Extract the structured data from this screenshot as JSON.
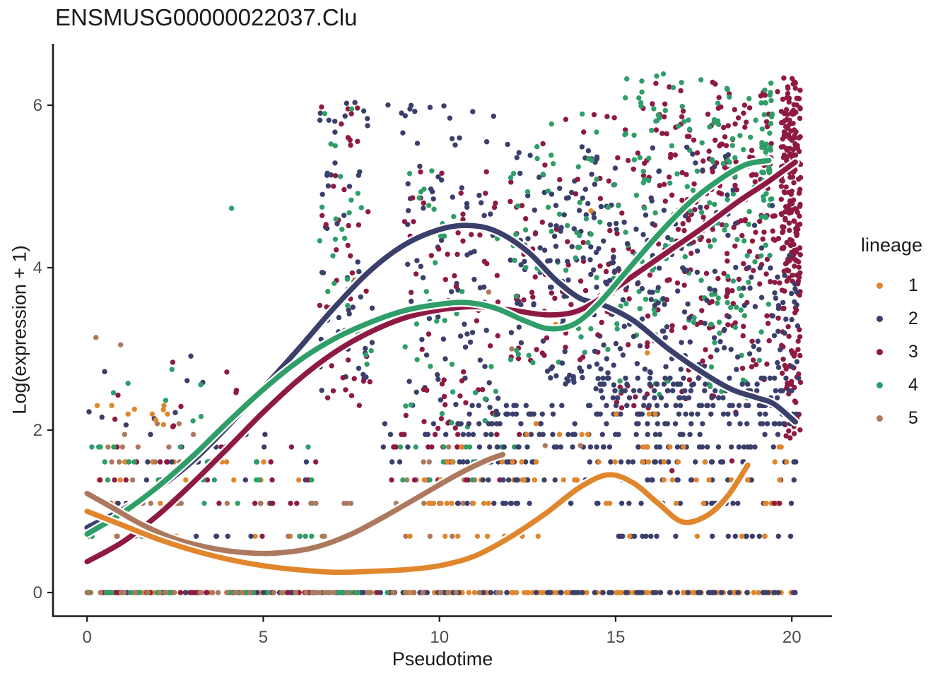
{
  "chart_data": {
    "type": "scatter",
    "title": "ENSMUSG00000022037.Clu",
    "xlabel": "Pseudotime",
    "ylabel": "Log(expression + 1)",
    "xlim": [
      -1.0,
      21.4
    ],
    "ylim": [
      -0.3,
      6.85
    ],
    "x_ticks": [
      0,
      5,
      10,
      15,
      20
    ],
    "y_ticks": [
      0,
      2,
      4,
      6
    ],
    "grid": false,
    "axis_color": "#1A1A1A",
    "tick_label_color": "#4D4D4D",
    "legend": {
      "title": "lineage",
      "position": "right",
      "entries": [
        {
          "label": "1",
          "color": "#E0862C"
        },
        {
          "label": "2",
          "color": "#3A3F6B"
        },
        {
          "label": "3",
          "color": "#8E1A43"
        },
        {
          "label": "4",
          "color": "#2F9E68"
        },
        {
          "label": "5",
          "color": "#AC795F"
        }
      ]
    },
    "colors": {
      "1": "#E0862C",
      "2": "#3A3F6B",
      "3": "#8E1A43",
      "4": "#2F9E68",
      "5": "#AC795F"
    },
    "smoothers": [
      {
        "lineage": "2",
        "points": [
          [
            0,
            0.8
          ],
          [
            1,
            1.02
          ],
          [
            2,
            1.28
          ],
          [
            3,
            1.62
          ],
          [
            4,
            2.05
          ],
          [
            5,
            2.52
          ],
          [
            6,
            3.0
          ],
          [
            7,
            3.5
          ],
          [
            8,
            3.95
          ],
          [
            9,
            4.28
          ],
          [
            10,
            4.47
          ],
          [
            10.8,
            4.52
          ],
          [
            11.6,
            4.45
          ],
          [
            12.5,
            4.2
          ],
          [
            13.3,
            3.85
          ],
          [
            14,
            3.62
          ],
          [
            14.6,
            3.55
          ],
          [
            15.5,
            3.35
          ],
          [
            16.5,
            3.0
          ],
          [
            17.5,
            2.7
          ],
          [
            18.3,
            2.5
          ],
          [
            19,
            2.4
          ],
          [
            19.5,
            2.32
          ],
          [
            20.1,
            2.1
          ]
        ]
      },
      {
        "lineage": "3",
        "points": [
          [
            0,
            0.38
          ],
          [
            1,
            0.62
          ],
          [
            2,
            0.95
          ],
          [
            3,
            1.35
          ],
          [
            4,
            1.78
          ],
          [
            5,
            2.22
          ],
          [
            6,
            2.62
          ],
          [
            7,
            2.95
          ],
          [
            8,
            3.2
          ],
          [
            9,
            3.38
          ],
          [
            10,
            3.48
          ],
          [
            11,
            3.52
          ],
          [
            12,
            3.48
          ],
          [
            13,
            3.42
          ],
          [
            13.8,
            3.45
          ],
          [
            14.5,
            3.6
          ],
          [
            15.5,
            3.9
          ],
          [
            16.5,
            4.2
          ],
          [
            17.5,
            4.5
          ],
          [
            18.5,
            4.82
          ],
          [
            19.3,
            5.05
          ],
          [
            20.1,
            5.3
          ]
        ]
      },
      {
        "lineage": "4",
        "points": [
          [
            0,
            0.72
          ],
          [
            1,
            0.98
          ],
          [
            2,
            1.3
          ],
          [
            3,
            1.68
          ],
          [
            4,
            2.1
          ],
          [
            5,
            2.5
          ],
          [
            6,
            2.85
          ],
          [
            7,
            3.12
          ],
          [
            8,
            3.32
          ],
          [
            9,
            3.47
          ],
          [
            10,
            3.55
          ],
          [
            10.8,
            3.57
          ],
          [
            11.6,
            3.5
          ],
          [
            12.4,
            3.35
          ],
          [
            13.1,
            3.25
          ],
          [
            13.8,
            3.3
          ],
          [
            14.5,
            3.55
          ],
          [
            15.3,
            3.95
          ],
          [
            16.2,
            4.4
          ],
          [
            17.1,
            4.8
          ],
          [
            18,
            5.1
          ],
          [
            18.7,
            5.27
          ],
          [
            19.35,
            5.32
          ]
        ]
      },
      {
        "lineage": "5",
        "points": [
          [
            0,
            1.22
          ],
          [
            0.7,
            1.05
          ],
          [
            1.5,
            0.85
          ],
          [
            2.5,
            0.66
          ],
          [
            3.5,
            0.55
          ],
          [
            4.5,
            0.49
          ],
          [
            5.5,
            0.49
          ],
          [
            6.5,
            0.56
          ],
          [
            7.5,
            0.72
          ],
          [
            8.5,
            0.95
          ],
          [
            9.5,
            1.2
          ],
          [
            10.5,
            1.45
          ],
          [
            11.3,
            1.62
          ],
          [
            11.8,
            1.7
          ]
        ]
      },
      {
        "lineage": "1",
        "points": [
          [
            0,
            1.0
          ],
          [
            1,
            0.83
          ],
          [
            2,
            0.66
          ],
          [
            3,
            0.52
          ],
          [
            4,
            0.41
          ],
          [
            5,
            0.33
          ],
          [
            6,
            0.28
          ],
          [
            7,
            0.25
          ],
          [
            8,
            0.26
          ],
          [
            9,
            0.28
          ],
          [
            10,
            0.33
          ],
          [
            11,
            0.45
          ],
          [
            12,
            0.68
          ],
          [
            13,
            0.97
          ],
          [
            14,
            1.3
          ],
          [
            14.8,
            1.45
          ],
          [
            15.5,
            1.35
          ],
          [
            16.2,
            1.1
          ],
          [
            16.9,
            0.87
          ],
          [
            17.6,
            0.95
          ],
          [
            18.2,
            1.2
          ],
          [
            18.75,
            1.57
          ]
        ]
      }
    ],
    "scatter": {
      "seed": 7,
      "point_radius": 3.7,
      "quantized_rows": [
        0,
        0.693,
        1.099,
        1.386,
        1.609,
        1.792,
        1.946,
        2.079,
        2.197,
        2.303,
        2.398,
        2.485,
        2.565,
        2.64
      ],
      "clusters": [
        {
          "lineage": "1",
          "t": [
            0,
            9.5
          ],
          "values": [
            0
          ],
          "n": 70
        },
        {
          "lineage": "1",
          "t": [
            9.5,
            20.2
          ],
          "values": [
            0
          ],
          "n": 110
        },
        {
          "lineage": "2",
          "t": [
            0,
            9.5
          ],
          "values": [
            0
          ],
          "n": 40
        },
        {
          "lineage": "2",
          "t": [
            9.5,
            20.2
          ],
          "values": [
            0
          ],
          "n": 60
        },
        {
          "lineage": "3",
          "t": [
            0,
            9.2
          ],
          "values": [
            0
          ],
          "n": 45
        },
        {
          "lineage": "4",
          "t": [
            0,
            9.2
          ],
          "values": [
            0
          ],
          "n": 35
        },
        {
          "lineage": "5",
          "t": [
            0,
            11.8
          ],
          "values": [
            0
          ],
          "n": 45
        },
        {
          "lineage": "1",
          "t": [
            0,
            6.5
          ],
          "values": [
            0.693,
            1.099,
            1.386,
            1.609
          ],
          "n": 22
        },
        {
          "lineage": "1",
          "t": [
            0,
            2.5
          ],
          "values": [
            1.946,
            2.197,
            2.303
          ],
          "n": 6
        },
        {
          "lineage": "2",
          "t": [
            0,
            6.5
          ],
          "values": [
            0.693,
            1.099,
            1.386,
            1.609,
            1.792,
            1.946
          ],
          "n": 30
        },
        {
          "lineage": "3",
          "t": [
            0,
            6.5
          ],
          "values": [
            0.693,
            1.099,
            1.386,
            1.609,
            1.792
          ],
          "n": 30
        },
        {
          "lineage": "4",
          "t": [
            0,
            6.5
          ],
          "values": [
            0.693,
            1.099,
            1.386,
            1.609,
            1.792
          ],
          "n": 30
        },
        {
          "lineage": "5",
          "t": [
            0,
            3
          ],
          "values": [
            0.693,
            1.099,
            1.386,
            1.609,
            1.792
          ],
          "n": 22
        },
        {
          "lineage": "5",
          "t": [
            3,
            9
          ],
          "values": [
            0.693,
            1.099
          ],
          "n": 12
        },
        {
          "lineage": "5",
          "t": [
            9,
            12
          ],
          "values": [
            0.693,
            1.099,
            1.386,
            1.609,
            1.792
          ],
          "n": 16
        },
        {
          "lineage": "5",
          "t": [
            0,
            5
          ],
          "values": [
            1.946,
            2.079
          ],
          "n": 4
        },
        {
          "lineage": "2",
          "t": [
            0,
            4
          ],
          "vrange": [
            2.0,
            3.0
          ],
          "n": 9
        },
        {
          "lineage": "3",
          "t": [
            0,
            5.5
          ],
          "vrange": [
            2.0,
            3.1
          ],
          "n": 9
        },
        {
          "lineage": "4",
          "t": [
            0,
            4.5
          ],
          "vrange": [
            2.0,
            2.8
          ],
          "n": 7
        },
        {
          "lineage": "1",
          "t": [
            0,
            3
          ],
          "vrange": [
            2.0,
            2.4
          ],
          "n": 4
        },
        {
          "lineage": "2",
          "t": [
            6.6,
            8.1
          ],
          "vrange": [
            2.3,
            6.1
          ],
          "n": 55
        },
        {
          "lineage": "3",
          "t": [
            6.6,
            8.1
          ],
          "vrange": [
            2.3,
            6.0
          ],
          "n": 45
        },
        {
          "lineage": "4",
          "t": [
            6.6,
            8.1
          ],
          "vrange": [
            2.3,
            6.1
          ],
          "n": 28
        },
        {
          "lineage": "2",
          "t": [
            9,
            11.7
          ],
          "vrange": [
            2.2,
            6.0
          ],
          "n": 80
        },
        {
          "lineage": "3",
          "t": [
            9,
            11.7
          ],
          "vrange": [
            2.0,
            5.2
          ],
          "n": 60
        },
        {
          "lineage": "4",
          "t": [
            9,
            11.7
          ],
          "vrange": [
            2.0,
            5.2
          ],
          "n": 40
        },
        {
          "lineage": "2",
          "t": [
            8.4,
            12.6
          ],
          "values": [
            1.609,
            1.792,
            1.946,
            2.079
          ],
          "n": 22
        },
        {
          "lineage": "3",
          "t": [
            8.4,
            12.6
          ],
          "values": [
            1.386,
            1.609,
            1.792,
            1.946
          ],
          "n": 25
        },
        {
          "lineage": "4",
          "t": [
            8.4,
            12.6
          ],
          "values": [
            1.386,
            1.609,
            1.792
          ],
          "n": 16
        },
        {
          "lineage": "1",
          "t": [
            8.8,
            12.6
          ],
          "values": [
            0.693,
            1.099,
            1.386
          ],
          "n": 20
        },
        {
          "lineage": "2",
          "t": [
            12,
            15
          ],
          "vrange": [
            2.5,
            5.5
          ],
          "n": 90
        },
        {
          "lineage": "3",
          "t": [
            12,
            15
          ],
          "vrange": [
            2.8,
            5.2
          ],
          "n": 65
        },
        {
          "lineage": "4",
          "t": [
            12,
            15
          ],
          "vrange": [
            2.8,
            5.5
          ],
          "n": 50
        },
        {
          "lineage": "3",
          "t": [
            15,
            19.7
          ],
          "vrange": [
            3.2,
            6.3
          ],
          "n": 230,
          "skew": 0.75
        },
        {
          "lineage": "4",
          "t": [
            15,
            19.45
          ],
          "vrange": [
            3.2,
            6.4
          ],
          "n": 165,
          "skew": 0.8
        },
        {
          "lineage": "3",
          "t": [
            19.7,
            20.25
          ],
          "vrange": [
            3.8,
            6.35
          ],
          "n": 190
        },
        {
          "lineage": "3",
          "t": [
            19.7,
            20.25
          ],
          "vrange": [
            1.9,
            3.8
          ],
          "n": 55
        },
        {
          "lineage": "4",
          "t": [
            19.15,
            19.45
          ],
          "vrange": [
            4.6,
            6.45
          ],
          "n": 32
        },
        {
          "lineage": "3",
          "t": [
            15,
            19.5
          ],
          "vrange": [
            2.2,
            3.2
          ],
          "n": 35
        },
        {
          "lineage": "4",
          "t": [
            15,
            19.5
          ],
          "vrange": [
            2.3,
            3.2
          ],
          "n": 18
        },
        {
          "lineage": "2",
          "t": [
            13,
            17.2
          ],
          "vrange": [
            2.5,
            4.9
          ],
          "n": 120
        },
        {
          "lineage": "2",
          "t": [
            14.5,
            20.2
          ],
          "values": [
            1.609,
            1.792,
            1.946,
            2.079,
            2.197,
            2.303,
            2.398,
            2.485,
            2.565,
            2.64
          ],
          "n": 210
        },
        {
          "lineage": "2",
          "t": [
            10.5,
            14.5
          ],
          "values": [
            1.099,
            1.386,
            1.609,
            1.792,
            1.946,
            2.079,
            2.197,
            2.303
          ],
          "n": 110
        },
        {
          "lineage": "2",
          "t": [
            15,
            20.2
          ],
          "values": [
            0.693,
            1.099,
            1.386
          ],
          "n": 55
        },
        {
          "lineage": "2",
          "t": [
            17,
            20.2
          ],
          "vrange": [
            2.7,
            4.2
          ],
          "n": 60,
          "skew": 0.8
        },
        {
          "lineage": "1",
          "t": [
            10,
            20
          ],
          "values": [
            0.693,
            1.099,
            1.386,
            1.609,
            1.792
          ],
          "n": 65
        },
        {
          "lineage": "1",
          "t": [
            12,
            16.5
          ],
          "values": [
            1.946,
            2.079,
            2.197
          ],
          "n": 8
        },
        {
          "lineage": "2",
          "t": [
            8.5,
            12
          ],
          "vrange": [
            5.5,
            6.05
          ],
          "n": 10
        },
        {
          "lineage": "3",
          "t": [
            12.5,
            15
          ],
          "vrange": [
            5.2,
            5.9
          ],
          "n": 7
        },
        {
          "lineage": "4",
          "t": [
            12.5,
            15
          ],
          "vrange": [
            4.6,
            6.0
          ],
          "n": 10
        },
        {
          "lineage": "2",
          "t": [
            15.5,
            19.5
          ],
          "vrange": [
            4.2,
            5.5
          ],
          "n": 25
        }
      ],
      "outliers": [
        [
          4.1,
          4.73,
          "4"
        ],
        [
          14.3,
          4.7,
          "1"
        ],
        [
          7.6,
          3.85,
          "5"
        ],
        [
          11.4,
          3.7,
          "5"
        ],
        [
          12.05,
          3.0,
          "5"
        ],
        [
          0.25,
          3.14,
          "5"
        ],
        [
          0.95,
          3.05,
          "5"
        ],
        [
          13.0,
          1.81,
          "5"
        ],
        [
          14.0,
          1.81,
          "5"
        ],
        [
          15.9,
          2.95,
          "1"
        ],
        [
          13.3,
          3.3,
          "1"
        ],
        [
          16.6,
          1.5,
          "3"
        ],
        [
          18.3,
          1.62,
          "3"
        ],
        [
          19.5,
          1.099,
          "3"
        ],
        [
          19.65,
          1.099,
          "3"
        ]
      ]
    }
  }
}
